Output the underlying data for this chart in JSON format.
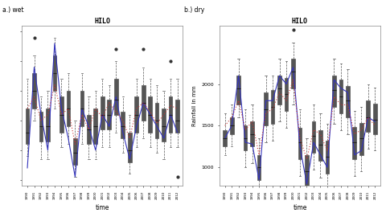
{
  "title_left": "HILO",
  "title_right": "HILO",
  "label_left": "a.) wet",
  "label_right": "b.) dry",
  "ylabel": "Rainfall in mm",
  "xlabel": "time",
  "years": [
    1990,
    1991,
    1992,
    1993,
    1994,
    1995,
    1996,
    1997,
    1998,
    1999,
    2000,
    2001,
    2002,
    2003,
    2004,
    2005,
    2006,
    2007,
    2008,
    2009,
    2010,
    2011,
    2012
  ],
  "wet_actual": [
    700,
    2400,
    1600,
    1000,
    2800,
    1700,
    1200,
    550,
    1700,
    1400,
    1000,
    1600,
    1400,
    1900,
    1300,
    850,
    1400,
    1800,
    1600,
    1400,
    1200,
    1600,
    1300
  ],
  "wet_elison": [
    1700,
    1900,
    1500,
    1600,
    2100,
    1600,
    1700,
    1100,
    1600,
    1350,
    1700,
    1550,
    1800,
    1650,
    1500,
    1200,
    1700,
    1800,
    1650,
    1450,
    1600,
    1750,
    1700
  ],
  "wet_box_medians": [
    1300,
    2000,
    1400,
    1400,
    2300,
    1600,
    1700,
    950,
    1700,
    1350,
    1400,
    1600,
    1600,
    1850,
    1400,
    1000,
    1600,
    1800,
    1600,
    1500,
    1400,
    1600,
    1500
  ],
  "wet_box_q1": [
    1100,
    1700,
    1150,
    1150,
    2000,
    1300,
    1400,
    750,
    1400,
    1100,
    1100,
    1350,
    1350,
    1600,
    1200,
    800,
    1300,
    1500,
    1300,
    1200,
    1150,
    1300,
    1300
  ],
  "wet_box_q3": [
    1700,
    2300,
    1650,
    1700,
    2600,
    1900,
    2000,
    1200,
    2000,
    1600,
    1700,
    1900,
    1850,
    2200,
    1650,
    1300,
    1900,
    2100,
    1900,
    1800,
    1700,
    1900,
    1850
  ],
  "wet_box_min": [
    900,
    1500,
    850,
    850,
    1700,
    1050,
    1100,
    550,
    1100,
    850,
    850,
    1050,
    1050,
    1300,
    950,
    600,
    1050,
    1200,
    1050,
    950,
    850,
    1050,
    1050
  ],
  "wet_box_max": [
    2200,
    2600,
    1900,
    2000,
    2900,
    2200,
    2300,
    1500,
    2300,
    1900,
    2000,
    2200,
    2100,
    2500,
    1900,
    1600,
    2200,
    2400,
    2200,
    2100,
    2000,
    2200,
    2200
  ],
  "wet_outliers_high": [
    null,
    2900,
    null,
    null,
    null,
    null,
    null,
    null,
    null,
    null,
    null,
    null,
    null,
    2700,
    null,
    null,
    null,
    2700,
    null,
    null,
    null,
    2500,
    null
  ],
  "wet_outliers_low": [
    null,
    null,
    null,
    null,
    null,
    null,
    null,
    null,
    null,
    null,
    null,
    null,
    null,
    null,
    null,
    null,
    null,
    null,
    null,
    null,
    null,
    null,
    550
  ],
  "dry_actual": [
    1350,
    1500,
    2100,
    1300,
    1280,
    850,
    1800,
    1800,
    2100,
    2000,
    2200,
    1250,
    800,
    1300,
    1150,
    1000,
    2050,
    1950,
    1900,
    1150,
    1200,
    1600,
    1550
  ],
  "dry_elison": [
    1500,
    1600,
    1800,
    1450,
    1550,
    1150,
    1650,
    1700,
    1900,
    1800,
    2050,
    1350,
    1100,
    1450,
    1400,
    1200,
    1850,
    1750,
    1750,
    1400,
    1450,
    1600,
    1500
  ],
  "dry_box_medians": [
    1350,
    1500,
    1950,
    1350,
    1400,
    1000,
    1700,
    1725,
    1950,
    1875,
    2150,
    1300,
    950,
    1375,
    1275,
    1125,
    1925,
    1850,
    1800,
    1300,
    1350,
    1600,
    1575
  ],
  "dry_box_q1": [
    1250,
    1400,
    1750,
    1200,
    1250,
    850,
    1500,
    1525,
    1750,
    1675,
    1950,
    1100,
    780,
    1175,
    1075,
    925,
    1725,
    1650,
    1600,
    1100,
    1150,
    1425,
    1400
  ],
  "dry_box_q3": [
    1450,
    1600,
    2100,
    1500,
    1550,
    1150,
    1900,
    1925,
    2100,
    2075,
    2300,
    1475,
    1150,
    1550,
    1450,
    1325,
    2100,
    2050,
    1980,
    1480,
    1530,
    1800,
    1760
  ],
  "dry_box_min": [
    1150,
    1250,
    1600,
    1000,
    1050,
    650,
    1300,
    1325,
    1550,
    1475,
    1750,
    900,
    600,
    975,
    875,
    725,
    1525,
    1450,
    1400,
    900,
    950,
    1225,
    1200
  ],
  "dry_box_max": [
    1650,
    1750,
    2300,
    1700,
    1750,
    1350,
    2100,
    2100,
    2300,
    2275,
    2500,
    1700,
    1350,
    1750,
    1650,
    1525,
    2300,
    2250,
    2180,
    1680,
    1730,
    2000,
    1960
  ],
  "dry_outliers_high": [
    null,
    null,
    null,
    null,
    null,
    null,
    null,
    null,
    null,
    null,
    2650,
    null,
    null,
    null,
    null,
    null,
    null,
    null,
    null,
    null,
    null,
    null,
    null
  ],
  "dry_outliers_low": [
    null,
    null,
    null,
    null,
    null,
    null,
    null,
    null,
    null,
    null,
    null,
    null,
    null,
    null,
    null,
    null,
    null,
    null,
    null,
    null,
    null,
    null,
    null
  ],
  "dry_yticks": [
    1000,
    1500,
    2000
  ],
  "dry_ylim": [
    780,
    2700
  ],
  "wet_ylim": [
    400,
    3100
  ],
  "box_facecolor": "#f0f0f0",
  "box_edge_color": "#555555",
  "actual_line_color": "#3333bb",
  "elison_line_color": "#cc3333",
  "median_line_color": "#222222",
  "background_color": "#ffffff"
}
